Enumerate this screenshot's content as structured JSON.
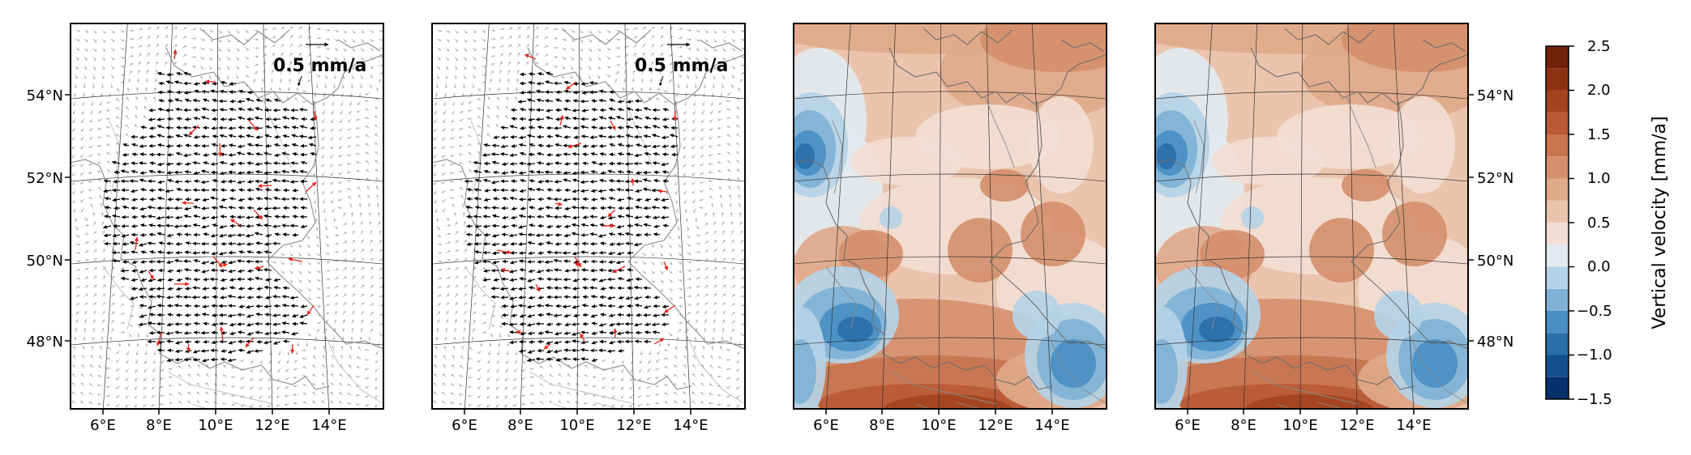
{
  "chart_data": [
    {
      "type": "vector_field",
      "panel": "a",
      "title": "",
      "ref_label": "0.5 mm/a",
      "ref_length_mm_a": 0.5,
      "lat_range": [
        46.3,
        55.6
      ],
      "lon_range": [
        5.0,
        16.0
      ],
      "lat_ticks": [
        "54°N",
        "52°N",
        "50°N",
        "48°N"
      ],
      "lon_ticks": [
        "6°E",
        "8°E",
        "10°E",
        "12°E",
        "14°E"
      ],
      "legend": "top-right"
    },
    {
      "type": "vector_field",
      "panel": "b",
      "title": "",
      "ref_label": "0.5 mm/a",
      "ref_length_mm_a": 0.5,
      "lat_range": [
        46.3,
        55.6
      ],
      "lon_range": [
        5.0,
        16.0
      ],
      "lon_ticks": [
        "6°E",
        "8°E",
        "10°E",
        "12°E",
        "14°E"
      ],
      "legend": "top-right"
    },
    {
      "type": "heatmap",
      "panel": "c",
      "title": "",
      "zlabel": "Vertical velocity [mm/a]",
      "lat_range": [
        46.3,
        55.6
      ],
      "lon_range": [
        5.0,
        16.0
      ],
      "lon_ticks": [
        "6°E",
        "8°E",
        "10°E",
        "12°E",
        "14°E"
      ]
    },
    {
      "type": "heatmap",
      "panel": "d",
      "title": "",
      "zlabel": "Vertical velocity [mm/a]",
      "lat_range": [
        46.3,
        55.6
      ],
      "lon_range": [
        5.0,
        16.0
      ],
      "lat_ticks": [
        "54°N",
        "52°N",
        "50°N",
        "48°N"
      ],
      "lon_ticks": [
        "6°E",
        "8°E",
        "10°E",
        "12°E",
        "14°E"
      ]
    }
  ],
  "colorbar": {
    "label": "Vertical velocity [mm/a]",
    "range": [
      -1.5,
      2.5
    ],
    "ticks": [
      "2.5",
      "2.0",
      "1.5",
      "1.0",
      "0.5",
      "0.0",
      "−0.5",
      "−1.0",
      "−1.5"
    ],
    "levels": [
      -1.5,
      -1.25,
      -1.0,
      -0.75,
      -0.5,
      -0.25,
      0.0,
      0.25,
      0.5,
      0.75,
      1.0,
      1.25,
      1.5,
      1.75,
      2.0,
      2.25,
      2.5
    ],
    "colors": [
      "#08306b",
      "#134f8f",
      "#2a6faa",
      "#4a8fc4",
      "#7fb2d6",
      "#b5d3e6",
      "#e3e9ee",
      "#f2ddd2",
      "#ebc4ad",
      "#e0a98a",
      "#d58f6c",
      "#c8744f",
      "#b95a35",
      "#a4441f",
      "#8c3213",
      "#72210a"
    ]
  }
}
